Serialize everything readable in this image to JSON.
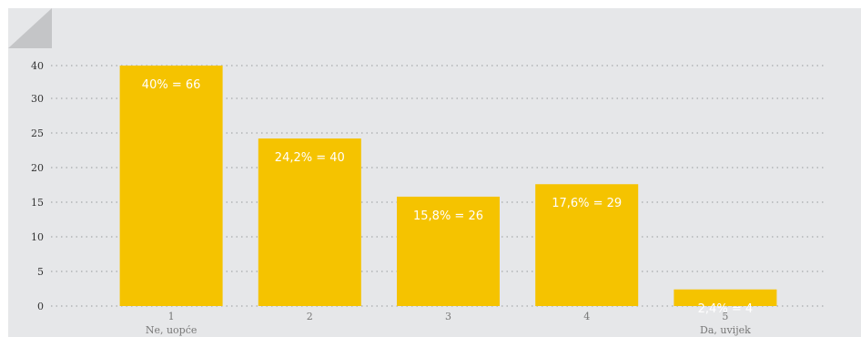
{
  "chart_data": {
    "type": "bar",
    "categories": [
      "1",
      "2",
      "3",
      "4",
      "5"
    ],
    "category_sublabels": [
      "Ne, uopće",
      "",
      "",
      "",
      "Da, uvijek"
    ],
    "values": [
      40,
      24.2,
      15.8,
      17.6,
      2.4
    ],
    "data_labels": [
      "40% = 66",
      "24,2% = 40",
      "15,8% = 26",
      "17,6% = 29",
      "2,4% = 4"
    ],
    "y_ticks": [
      0,
      5,
      10,
      15,
      20,
      25,
      30,
      40
    ],
    "grid": true,
    "colors": {
      "bar": "#f5c300",
      "background": "#e6e7e9",
      "corner": "#c4c5c7",
      "grid": "#a7a9ac"
    }
  }
}
